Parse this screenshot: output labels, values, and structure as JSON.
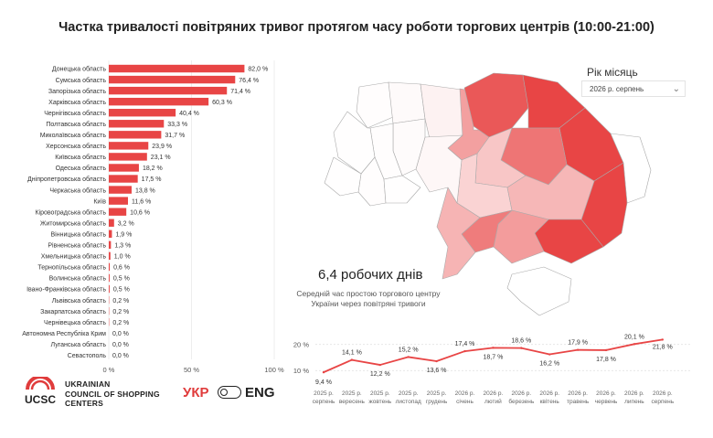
{
  "page": {
    "title": "Частка тривалості повітряних тривог протягом часу роботи торгових центрів (10:00-21:00)"
  },
  "filter": {
    "label": "Рік місяць",
    "selected": "2026 р. серпень"
  },
  "kpi": {
    "value": "6,4 робочих днів",
    "caption": "Середній час простою торгового центру України через повітряні тривоги"
  },
  "brand": {
    "logo_text": "UCSC",
    "name_line1": "UKRAINIAN",
    "name_line2": "COUNCIL OF SHOPPING",
    "name_line3": "CENTERS",
    "lang_ukr": "УКР",
    "lang_eng": "ENG"
  },
  "colors": {
    "bar": "#e84545",
    "line": "#e84545",
    "map_high": "#e84545",
    "map_low": "#ffffff"
  },
  "chart_data": [
    {
      "type": "bar",
      "orientation": "horizontal",
      "categories": [
        "Донецька область",
        "Сумська область",
        "Запорізька область",
        "Харківська область",
        "Чернігівська область",
        "Полтавська область",
        "Миколаївська область",
        "Херсонська область",
        "Київська область",
        "Одеська область",
        "Дніпропетровська область",
        "Черкаська область",
        "Київ",
        "Кіровоградська область",
        "Житомирська область",
        "Вінницька область",
        "Рівненська область",
        "Хмельницька область",
        "Тернопільська область",
        "Волинська область",
        "Івано-Франківська область",
        "Львівська область",
        "Закарпатська область",
        "Чернівецька область",
        "Автономна Республіка Крим",
        "Луганська область",
        "Севастополь"
      ],
      "values": [
        82.0,
        76.4,
        71.4,
        60.3,
        40.4,
        33.3,
        31.7,
        23.9,
        23.1,
        18.2,
        17.5,
        13.8,
        11.6,
        10.6,
        3.2,
        1.9,
        1.3,
        1.0,
        0.6,
        0.5,
        0.5,
        0.2,
        0.2,
        0.2,
        0.0,
        0.0,
        0.0
      ],
      "value_labels": [
        "82,0 %",
        "76,4 %",
        "71,4 %",
        "60,3 %",
        "40,4 %",
        "33,3 %",
        "31,7 %",
        "23,9 %",
        "23,1 %",
        "18,2 %",
        "17,5 %",
        "13,8 %",
        "11,6 %",
        "10,6 %",
        "3,2 %",
        "1,9 %",
        "1,3 %",
        "1,0 %",
        "0,6 %",
        "0,5 %",
        "0,5 %",
        "0,2 %",
        "0,2 %",
        "0,2 %",
        "0,0 %",
        "0,0 %",
        "0,0 %"
      ],
      "xlim": [
        0,
        100
      ],
      "xticks": [
        "0 %",
        "50 %",
        "100 %"
      ]
    },
    {
      "type": "line",
      "categories": [
        [
          "2025 р.",
          "серпень"
        ],
        [
          "2025 р.",
          "вересень"
        ],
        [
          "2025 р.",
          "жовтень"
        ],
        [
          "2025 р.",
          "листопад"
        ],
        [
          "2025 р.",
          "грудень"
        ],
        [
          "2026 р.",
          "січень"
        ],
        [
          "2026 р.",
          "лютий"
        ],
        [
          "2026 р.",
          "березень"
        ],
        [
          "2026 р.",
          "квітень"
        ],
        [
          "2026 р.",
          "травень"
        ],
        [
          "2026 р.",
          "червень"
        ],
        [
          "2026 р.",
          "липень"
        ],
        [
          "2026 р.",
          "серпень"
        ]
      ],
      "values": [
        9.4,
        14.1,
        12.2,
        15.2,
        13.6,
        17.4,
        18.7,
        18.6,
        16.2,
        17.9,
        17.8,
        20.1,
        21.8
      ],
      "value_labels": [
        "9,4 %",
        "14,1 %",
        "12,2 %",
        "15,2 %",
        "13,6 %",
        "17,4 %",
        "18,7 %",
        "18,6 %",
        "16,2 %",
        "17,9 %",
        "17,8 %",
        "20,1 %",
        "21,8 %"
      ],
      "yticks": [
        "10 %",
        "20 %"
      ],
      "ylim": [
        8,
        23
      ]
    },
    {
      "type": "choropleth",
      "regions": [
        "Донецька область",
        "Сумська область",
        "Запорізька область",
        "Харківська область",
        "Чернігівська область",
        "Полтавська область",
        "Миколаївська область",
        "Херсонська область",
        "Київська область",
        "Одеська область",
        "Дніпропетровська область",
        "Черкаська область",
        "Кіровоградська область",
        "Житомирська область",
        "Вінницька область",
        "Рівненська область",
        "Хмельницька область",
        "Тернопільська область",
        "Волинська область",
        "Івано-Франківська область",
        "Львівська область",
        "Закарпатська область",
        "Чернівецька область",
        "Автономна Республіка Крим",
        "Луганська область"
      ],
      "values": [
        82.0,
        76.4,
        71.4,
        60.3,
        40.4,
        33.3,
        31.7,
        23.9,
        23.1,
        18.2,
        17.5,
        13.8,
        10.6,
        3.2,
        1.9,
        1.3,
        1.0,
        0.6,
        0.5,
        0.5,
        0.2,
        0.2,
        0.2,
        0.0,
        0.0
      ]
    }
  ]
}
